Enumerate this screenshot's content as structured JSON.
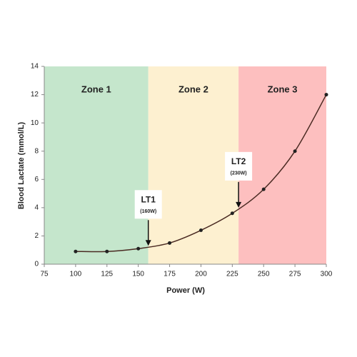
{
  "chart_data": {
    "type": "scatter",
    "x_label": "Power (W)",
    "y_label": "Blood Lactate (mmol/L)",
    "x": [
      100,
      125,
      150,
      175,
      200,
      225,
      250,
      275,
      300
    ],
    "values": [
      0.9,
      0.9,
      1.1,
      1.5,
      2.4,
      3.6,
      5.3,
      8.0,
      12.0
    ],
    "color": "#222222",
    "line_color": "#4a2a22",
    "xlim": [
      75,
      300
    ],
    "xticks": [
      75,
      100,
      125,
      150,
      175,
      200,
      225,
      250,
      275,
      300
    ],
    "ylim": [
      0,
      14
    ],
    "yticks": [
      0,
      2,
      4,
      6,
      8,
      10,
      12,
      14
    ],
    "zones": [
      {
        "label": "Zone 1",
        "from": 75,
        "to": 158,
        "color": "#c5e6cc"
      },
      {
        "label": "Zone 2",
        "from": 158,
        "to": 230,
        "color": "#fdf0d0"
      },
      {
        "label": "Zone 3",
        "from": 230,
        "to": 300,
        "color": "#fdbfbf"
      }
    ],
    "annotations": [
      {
        "label": "LT1",
        "sublabel": "(160W)",
        "x": 158,
        "y": 1.3
      },
      {
        "label": "LT2",
        "sublabel": "(230W)",
        "x": 230,
        "y": 4.0
      }
    ]
  }
}
